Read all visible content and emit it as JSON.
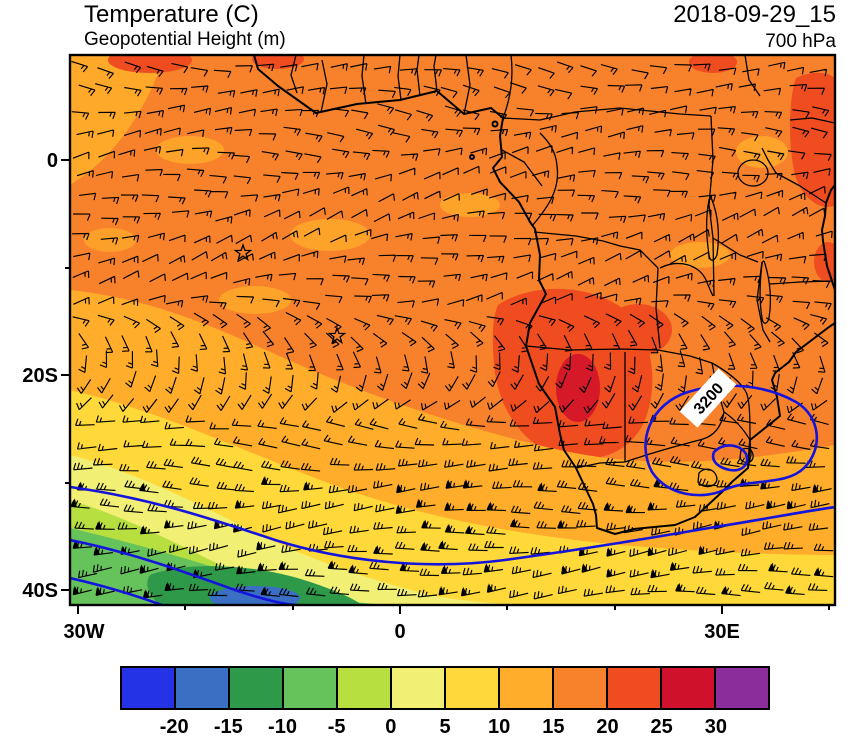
{
  "header": {
    "title": "Temperature (C)",
    "subtitle": "Geopotential Height (m)",
    "datetime": "2018-09-29_15",
    "level": "700 hPa"
  },
  "map": {
    "lat_ticks": [
      "0",
      "20S",
      "40S"
    ],
    "lon_ticks": [
      "30W",
      "0",
      "30E"
    ],
    "contour_label": "3200",
    "contour_color": "#1414dd",
    "outline_color": "#000000"
  },
  "colorbar": {
    "cell_colors": [
      "#2433e6",
      "#3a6fc3",
      "#2e9a49",
      "#66c35c",
      "#b8df40",
      "#f1ef74",
      "#ffd939",
      "#ffad2a",
      "#f8822c",
      "#ef4c20",
      "#d0112b",
      "#8c2d9c"
    ],
    "tick_labels": [
      "-20",
      "-15",
      "-10",
      "-5",
      "0",
      "5",
      "10",
      "15",
      "20",
      "25",
      "30"
    ]
  },
  "chart_data": {
    "type": "heatmap",
    "title": "Temperature (C)",
    "overlay": "Geopotential Height (m) contours and wind barbs",
    "level": "700 hPa",
    "valid_time": "2018-09-29_15",
    "x_axis": {
      "label": "longitude",
      "ticks": [
        "30W",
        "0",
        "30E"
      ],
      "approx_range": [
        "31W",
        "40E"
      ]
    },
    "y_axis": {
      "label": "latitude",
      "ticks": [
        "0",
        "20S",
        "40S"
      ],
      "approx_range": [
        "10N",
        "41S"
      ]
    },
    "temperature_levels_c": [
      -20,
      -15,
      -10,
      -5,
      0,
      5,
      10,
      15,
      20,
      25,
      30
    ],
    "level_colors": [
      "#2433e6",
      "#3a6fc3",
      "#2e9a49",
      "#66c35c",
      "#b8df40",
      "#f1ef74",
      "#ffd939",
      "#ffad2a",
      "#f8822c",
      "#ef4c20",
      "#d0112b",
      "#8c2d9c"
    ],
    "height_contour_color": "#1414dd",
    "labeled_contour_m": 3200,
    "notable_features": [
      "15-20 C over most of tropical Africa at 700 hPa",
      "20-25 C warm pocket over Angola / Namibia",
      "Cold air (below 0 C) in the far southwest near 40S",
      "Closed 3200 m geopotential height contour over eastern South Africa",
      "Strong mid-latitude westerly wind barbs along the southern edge"
    ]
  }
}
